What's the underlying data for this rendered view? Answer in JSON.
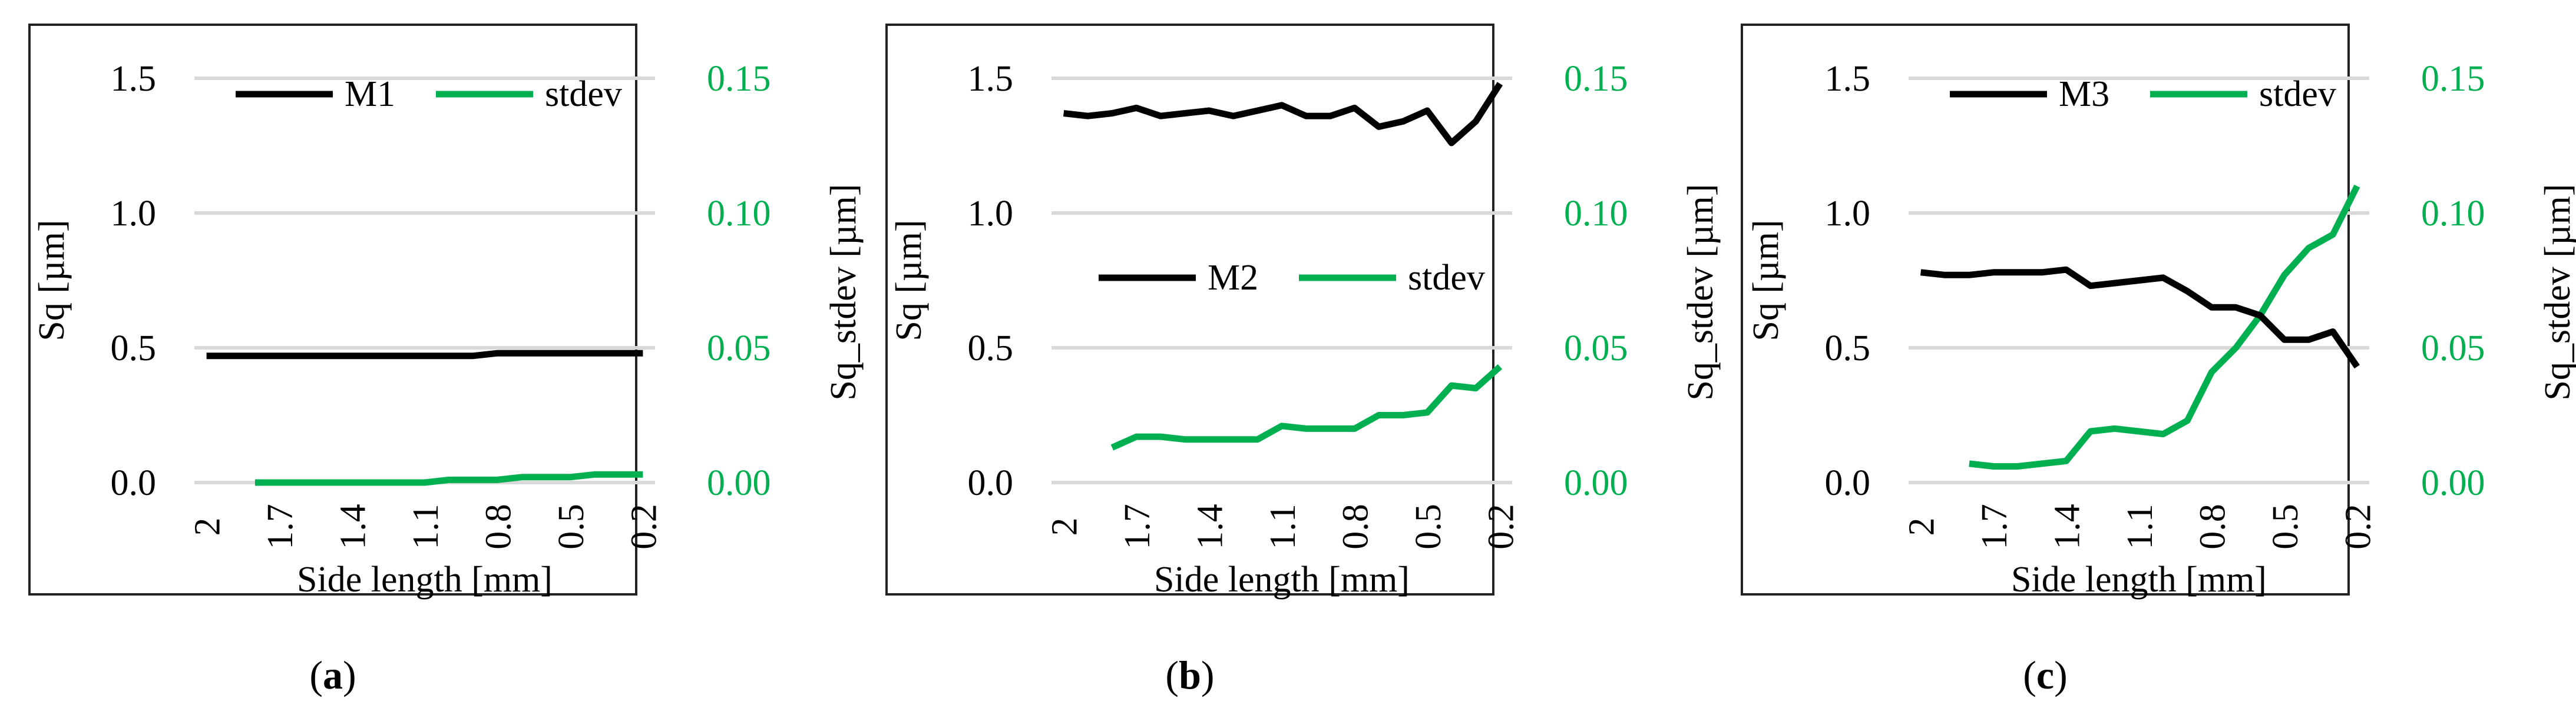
{
  "colors": {
    "primary": "#000000",
    "secondary": "#00b050",
    "grid": "#d9d9d9",
    "frame": "#222222"
  },
  "chart_data": [
    {
      "type": "line",
      "caption_letter": "a",
      "x": [
        "2",
        "1.9",
        "1.8",
        "1.7",
        "1.6",
        "1.5",
        "1.4",
        "1.3",
        "1.2",
        "1.1",
        "1",
        "0.9",
        "0.8",
        "0.7",
        "0.6",
        "0.5",
        "0.4",
        "0.3",
        "0.2"
      ],
      "xtick_labels": [
        "2",
        "1.7",
        "1.4",
        "1.1",
        "0.8",
        "0.5",
        "0.2"
      ],
      "xlabel": "Side length [mm]",
      "ylabel": "Sq [µm]",
      "ylabel_right": "Sq_stdev [µm]",
      "ylim": [
        0,
        1.5
      ],
      "ylim_right": [
        0,
        0.15
      ],
      "yticks": [
        "0.0",
        "0.5",
        "1.0",
        "1.5"
      ],
      "yticks_right": [
        "0.00",
        "0.05",
        "0.10",
        "0.15"
      ],
      "legend_position": "top",
      "legend_layout": "row",
      "series": [
        {
          "name": "M1",
          "axis": "left",
          "color": "#000000",
          "values": [
            0.47,
            0.47,
            0.47,
            0.47,
            0.47,
            0.47,
            0.47,
            0.47,
            0.47,
            0.47,
            0.47,
            0.47,
            0.48,
            0.48,
            0.48,
            0.48,
            0.48,
            0.48,
            0.48
          ]
        },
        {
          "name": "stdev",
          "axis": "right",
          "color": "#00b050",
          "values": [
            null,
            null,
            0.0,
            0.0,
            0.0,
            0.0,
            0.0,
            0.0,
            0.0,
            0.0,
            0.001,
            0.001,
            0.001,
            0.002,
            0.002,
            0.002,
            0.003,
            0.003,
            0.003
          ]
        }
      ]
    },
    {
      "type": "line",
      "caption_letter": "b",
      "x": [
        "2",
        "1.9",
        "1.8",
        "1.7",
        "1.6",
        "1.5",
        "1.4",
        "1.3",
        "1.2",
        "1.1",
        "1",
        "0.9",
        "0.8",
        "0.7",
        "0.6",
        "0.5",
        "0.4",
        "0.3",
        "0.2"
      ],
      "xtick_labels": [
        "2",
        "1.7",
        "1.4",
        "1.1",
        "0.8",
        "0.5",
        "0.2"
      ],
      "xlabel": "Side length [mm]",
      "ylabel": "Sq [µm]",
      "ylabel_right": "Sq_stdev [µm]",
      "ylim": [
        0,
        1.5
      ],
      "ylim_right": [
        0,
        0.15
      ],
      "yticks": [
        "0.0",
        "0.5",
        "1.0",
        "1.5"
      ],
      "yticks_right": [
        "0.00",
        "0.05",
        "0.10",
        "0.15"
      ],
      "legend_position": "center",
      "legend_layout": "row",
      "series": [
        {
          "name": "M2",
          "axis": "left",
          "color": "#000000",
          "values": [
            1.37,
            1.36,
            1.37,
            1.39,
            1.36,
            1.37,
            1.38,
            1.36,
            1.38,
            1.4,
            1.36,
            1.36,
            1.39,
            1.32,
            1.34,
            1.38,
            1.26,
            1.34,
            1.48
          ]
        },
        {
          "name": "stdev",
          "axis": "right",
          "color": "#00b050",
          "values": [
            null,
            null,
            0.013,
            0.017,
            0.017,
            0.016,
            0.016,
            0.016,
            0.016,
            0.021,
            0.02,
            0.02,
            0.02,
            0.025,
            0.025,
            0.026,
            0.036,
            0.035,
            0.043
          ]
        }
      ]
    },
    {
      "type": "line",
      "caption_letter": "c",
      "x": [
        "2",
        "1.9",
        "1.8",
        "1.7",
        "1.6",
        "1.5",
        "1.4",
        "1.3",
        "1.2",
        "1.1",
        "1",
        "0.9",
        "0.8",
        "0.7",
        "0.6",
        "0.5",
        "0.4",
        "0.3",
        "0.2"
      ],
      "xtick_labels": [
        "2",
        "1.7",
        "1.4",
        "1.1",
        "0.8",
        "0.5",
        "0.2"
      ],
      "xlabel": "Side length [mm]",
      "ylabel": "Sq [µm]",
      "ylabel_right": "Sq_stdev [µm]",
      "ylim": [
        0,
        1.5
      ],
      "ylim_right": [
        0,
        0.15
      ],
      "yticks": [
        "0.0",
        "0.5",
        "1.0",
        "1.5"
      ],
      "yticks_right": [
        "0.00",
        "0.05",
        "0.10",
        "0.15"
      ],
      "legend_position": "top",
      "legend_layout": "row",
      "series": [
        {
          "name": "M3",
          "axis": "left",
          "color": "#000000",
          "values": [
            0.78,
            0.77,
            0.77,
            0.78,
            0.78,
            0.78,
            0.79,
            0.73,
            0.74,
            0.75,
            0.76,
            0.71,
            0.65,
            0.65,
            0.62,
            0.53,
            0.53,
            0.56,
            0.43
          ]
        },
        {
          "name": "stdev",
          "axis": "right",
          "color": "#00b050",
          "values": [
            null,
            null,
            0.007,
            0.006,
            0.006,
            0.007,
            0.008,
            0.019,
            0.02,
            0.019,
            0.018,
            0.023,
            0.041,
            0.05,
            0.062,
            0.077,
            0.087,
            0.092,
            0.11
          ]
        }
      ]
    }
  ]
}
